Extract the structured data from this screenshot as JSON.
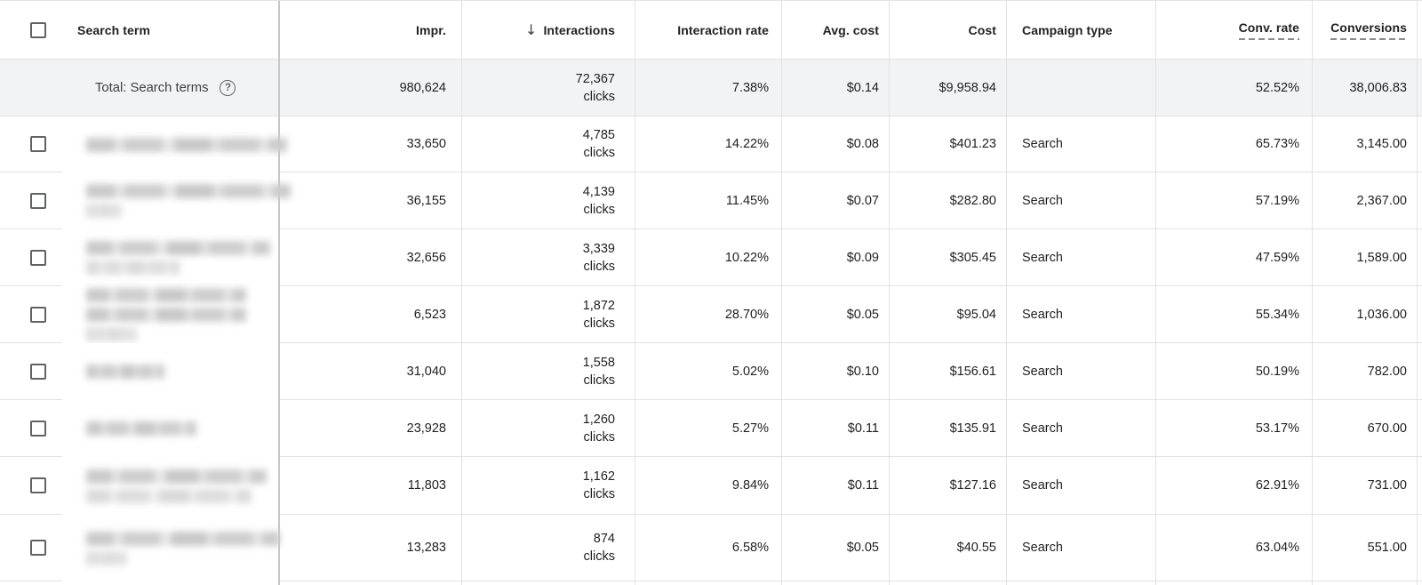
{
  "icons": {
    "sort_desc": "↓",
    "help": "?"
  },
  "table": {
    "columns": [
      {
        "label": "Search term",
        "align": "left"
      },
      {
        "label": "Impr.",
        "align": "right"
      },
      {
        "label": "Interactions",
        "align": "right",
        "sorted": "descending"
      },
      {
        "label": "Interaction rate",
        "align": "right"
      },
      {
        "label": "Avg. cost",
        "align": "right"
      },
      {
        "label": "Cost",
        "align": "right"
      },
      {
        "label": "Campaign type",
        "align": "left"
      },
      {
        "label": "Conv. rate",
        "align": "right",
        "underline": "dashed"
      },
      {
        "label": "Conversions",
        "align": "right",
        "underline": "dashed"
      }
    ],
    "total_row": {
      "label": "Total: Search terms",
      "impr": "980,624",
      "interactions": "72,367",
      "interactions_unit": "clicks",
      "interaction_rate": "7.38%",
      "avg_cost": "$0.14",
      "cost": "$9,958.94",
      "campaign_type": "",
      "conv_rate": "52.52%",
      "conversions": "38,006.83"
    },
    "rows": [
      {
        "search_term": "[redacted]",
        "impr": "33,650",
        "interactions": "4,785",
        "interactions_unit": "clicks",
        "interaction_rate": "14.22%",
        "avg_cost": "$0.08",
        "cost": "$401.23",
        "campaign_type": "Search",
        "conv_rate": "65.73%",
        "conversions": "3,145.00",
        "blur_lines": [
          226
        ]
      },
      {
        "search_term": "[redacted]",
        "impr": "36,155",
        "interactions": "4,139",
        "interactions_unit": "clicks",
        "interaction_rate": "11.45%",
        "avg_cost": "$0.07",
        "cost": "$282.80",
        "campaign_type": "Search",
        "conv_rate": "57.19%",
        "conversions": "2,367.00",
        "blur_lines": [
          230,
          40
        ]
      },
      {
        "search_term": "[redacted]",
        "impr": "32,656",
        "interactions": "3,339",
        "interactions_unit": "clicks",
        "interaction_rate": "10.22%",
        "avg_cost": "$0.09",
        "cost": "$305.45",
        "campaign_type": "Search",
        "conv_rate": "47.59%",
        "conversions": "1,589.00",
        "blur_lines": [
          207,
          105
        ]
      },
      {
        "search_term": "[redacted]",
        "impr": "6,523",
        "interactions": "1,872",
        "interactions_unit": "clicks",
        "interaction_rate": "28.70%",
        "avg_cost": "$0.05",
        "cost": "$95.04",
        "campaign_type": "Search",
        "conv_rate": "55.34%",
        "conversions": "1,036.00",
        "blur_lines": [
          180,
          180,
          57
        ]
      },
      {
        "search_term": "[redacted]",
        "impr": "31,040",
        "interactions": "1,558",
        "interactions_unit": "clicks",
        "interaction_rate": "5.02%",
        "avg_cost": "$0.10",
        "cost": "$156.61",
        "campaign_type": "Search",
        "conv_rate": "50.19%",
        "conversions": "782.00",
        "blur_lines": [
          88
        ]
      },
      {
        "search_term": "[redacted]",
        "impr": "23,928",
        "interactions": "1,260",
        "interactions_unit": "clicks",
        "interaction_rate": "5.27%",
        "avg_cost": "$0.11",
        "cost": "$135.91",
        "campaign_type": "Search",
        "conv_rate": "53.17%",
        "conversions": "670.00",
        "blur_lines": [
          124
        ]
      },
      {
        "search_term": "[redacted]",
        "impr": "11,803",
        "interactions": "1,162",
        "interactions_unit": "clicks",
        "interaction_rate": "9.84%",
        "avg_cost": "$0.11",
        "cost": "$127.16",
        "campaign_type": "Search",
        "conv_rate": "62.91%",
        "conversions": "731.00",
        "blur_lines": [
          203,
          186
        ]
      },
      {
        "search_term": "[redacted]",
        "impr": "13,283",
        "interactions": "874",
        "interactions_unit": "clicks",
        "interaction_rate": "6.58%",
        "avg_cost": "$0.05",
        "cost": "$40.55",
        "campaign_type": "Search",
        "conv_rate": "63.04%",
        "conversions": "551.00",
        "blur_lines": [
          218,
          46
        ]
      }
    ]
  },
  "colors": {
    "text": "#202124",
    "muted_gray": "#5f6368",
    "row_border": "#e1e2e4",
    "frozen_divider": "#c5c7c9",
    "total_row_bg": "#f2f3f5"
  }
}
